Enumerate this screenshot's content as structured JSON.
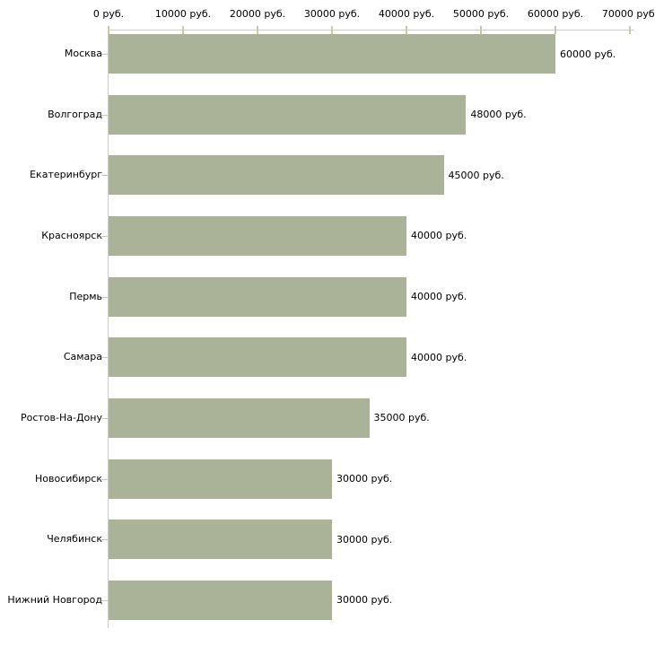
{
  "chart_data": {
    "type": "bar",
    "orientation": "horizontal",
    "title": "",
    "categories": [
      "Москва",
      "Волгоград",
      "Екатеринбург",
      "Красноярск",
      "Пермь",
      "Самара",
      "Ростов-На-Дону",
      "Новосибирск",
      "Челябинск",
      "Нижний Новгород"
    ],
    "values": [
      60000,
      48000,
      45000,
      40000,
      40000,
      40000,
      35000,
      30000,
      30000,
      30000
    ],
    "value_labels": [
      "60000 руб.",
      "48000 руб.",
      "45000 руб.",
      "40000 руб.",
      "40000 руб.",
      "40000 руб.",
      "35000 руб.",
      "30000 руб.",
      "30000 руб.",
      "30000 руб."
    ],
    "x_axis": {
      "position": "top",
      "min": 0,
      "max": 70000,
      "tick_values": [
        0,
        10000,
        20000,
        30000,
        40000,
        50000,
        60000,
        70000
      ],
      "tick_labels": [
        "0 руб.",
        "10000 руб.",
        "20000 руб.",
        "30000 руб.",
        "40000 руб.",
        "50000 руб.",
        "60000 руб.",
        "70000 руб."
      ]
    },
    "legend": "none",
    "grid": "off",
    "colors": {
      "bar": "#aab397",
      "axis_line": "#cccccc",
      "tick": "#c8cca0",
      "text": "#000000",
      "background": "#ffffff"
    }
  }
}
